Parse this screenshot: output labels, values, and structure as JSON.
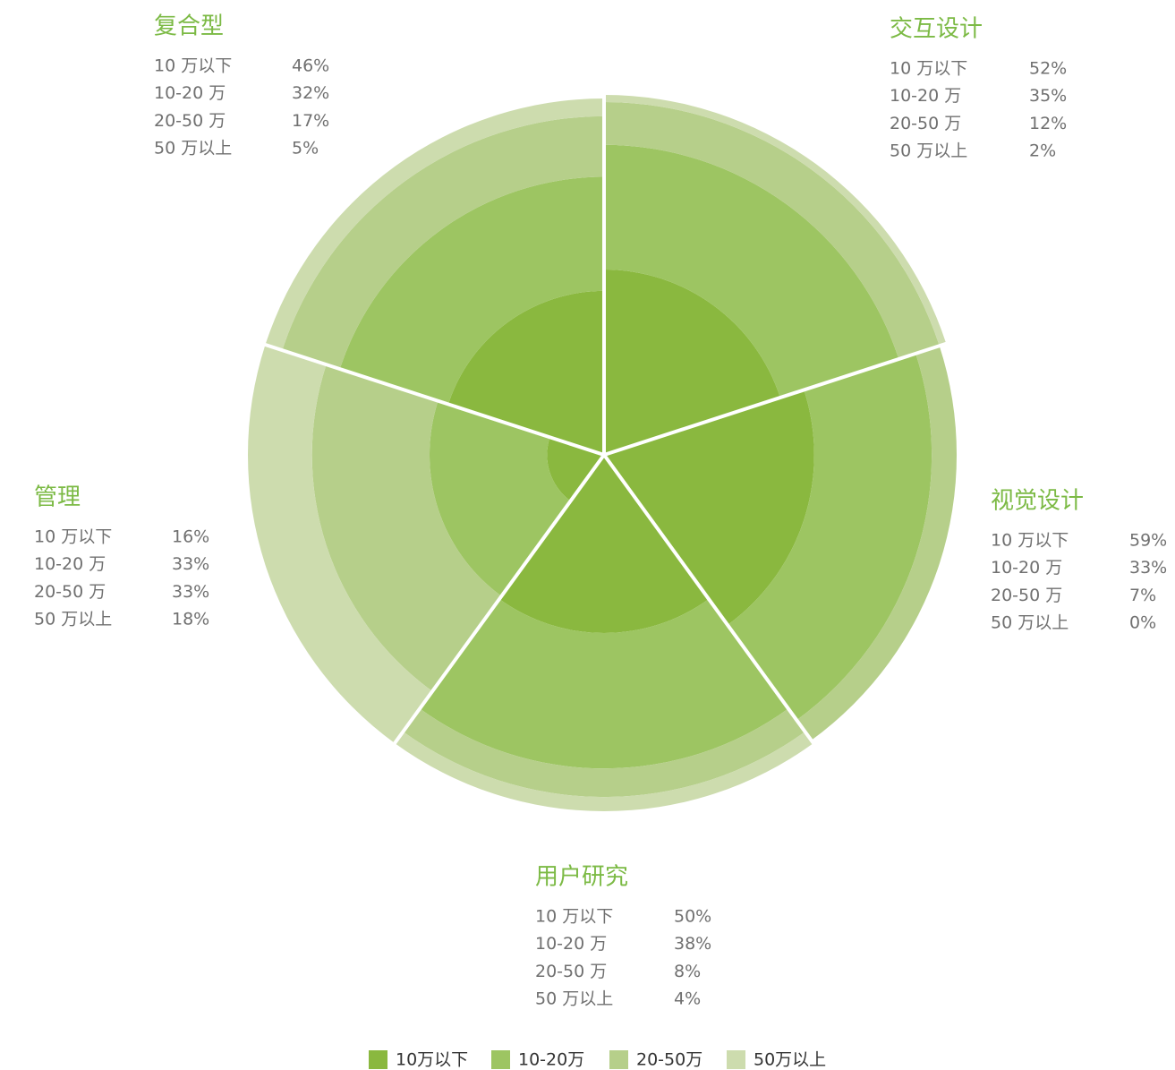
{
  "chart_data": {
    "type": "polar-stacked",
    "categories": [
      "交互设计",
      "视觉设计",
      "用户研究",
      "管理",
      "复合型"
    ],
    "row_labels": [
      "10 万以下",
      "10-20 万",
      "20-50 万",
      "50 万以上"
    ],
    "series": [
      {
        "name": "10万以下",
        "color": "#8ab83f",
        "values": [
          52,
          59,
          50,
          16,
          46
        ],
        "value_labels": [
          "52%",
          "59%",
          "50%",
          "16%",
          "46%"
        ]
      },
      {
        "name": "10-20万",
        "color": "#9dc562",
        "values": [
          35,
          33,
          38,
          33,
          32
        ],
        "value_labels": [
          "35%",
          "33%",
          "38%",
          "33%",
          "32%"
        ]
      },
      {
        "name": "20-50万",
        "color": "#b6cf8a",
        "values": [
          12,
          7,
          8,
          33,
          17
        ],
        "value_labels": [
          "12%",
          "7%",
          "8%",
          "33%",
          "17%"
        ]
      },
      {
        "name": "50万以上",
        "color": "#cddcae",
        "values": [
          2,
          0,
          4,
          18,
          5
        ],
        "value_labels": [
          "2%",
          "0%",
          "4%",
          "18%",
          "5%"
        ]
      }
    ],
    "rlim": [
      0,
      100
    ]
  }
}
